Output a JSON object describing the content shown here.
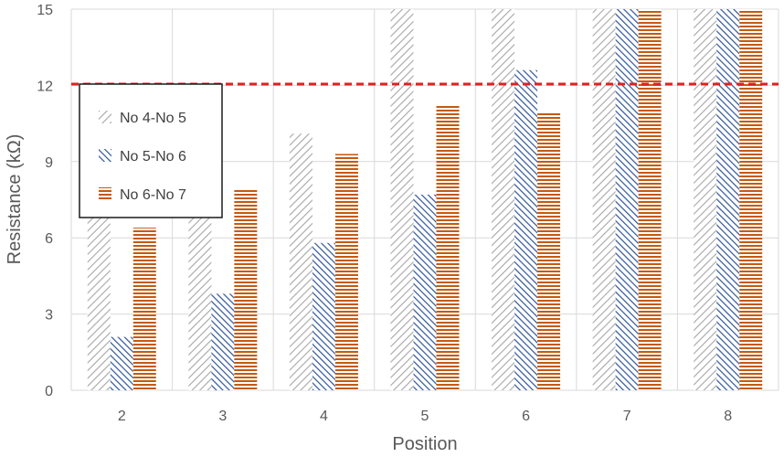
{
  "chart_data": {
    "type": "bar",
    "title": "",
    "xlabel": "Position",
    "ylabel": "Resistance (kΩ)",
    "categories": [
      "2",
      "3",
      "4",
      "5",
      "6",
      "7",
      "8"
    ],
    "ylim": [
      0,
      15
    ],
    "yticks": [
      "0",
      "3",
      "6",
      "9",
      "12",
      "15"
    ],
    "grid": true,
    "legend_position": "left",
    "reference_line": {
      "value": 12.05,
      "style": "dashed",
      "color": "#e02020"
    },
    "series": [
      {
        "name": "No 4-No 5",
        "pattern": "diagonal-up",
        "color": "#a6a6a6",
        "values": [
          7.0,
          7.2,
          10.1,
          15.0,
          15.0,
          15.0,
          15.0
        ]
      },
      {
        "name": "No 5-No 6",
        "pattern": "diagonal-down",
        "color": "#2f5597",
        "values": [
          2.1,
          3.8,
          5.8,
          7.7,
          12.6,
          15.0,
          15.0
        ]
      },
      {
        "name": "No 6-No 7",
        "pattern": "horizontal",
        "color": "#c55a11",
        "values": [
          6.4,
          7.9,
          9.3,
          11.2,
          10.9,
          15.0,
          15.0
        ]
      }
    ]
  }
}
